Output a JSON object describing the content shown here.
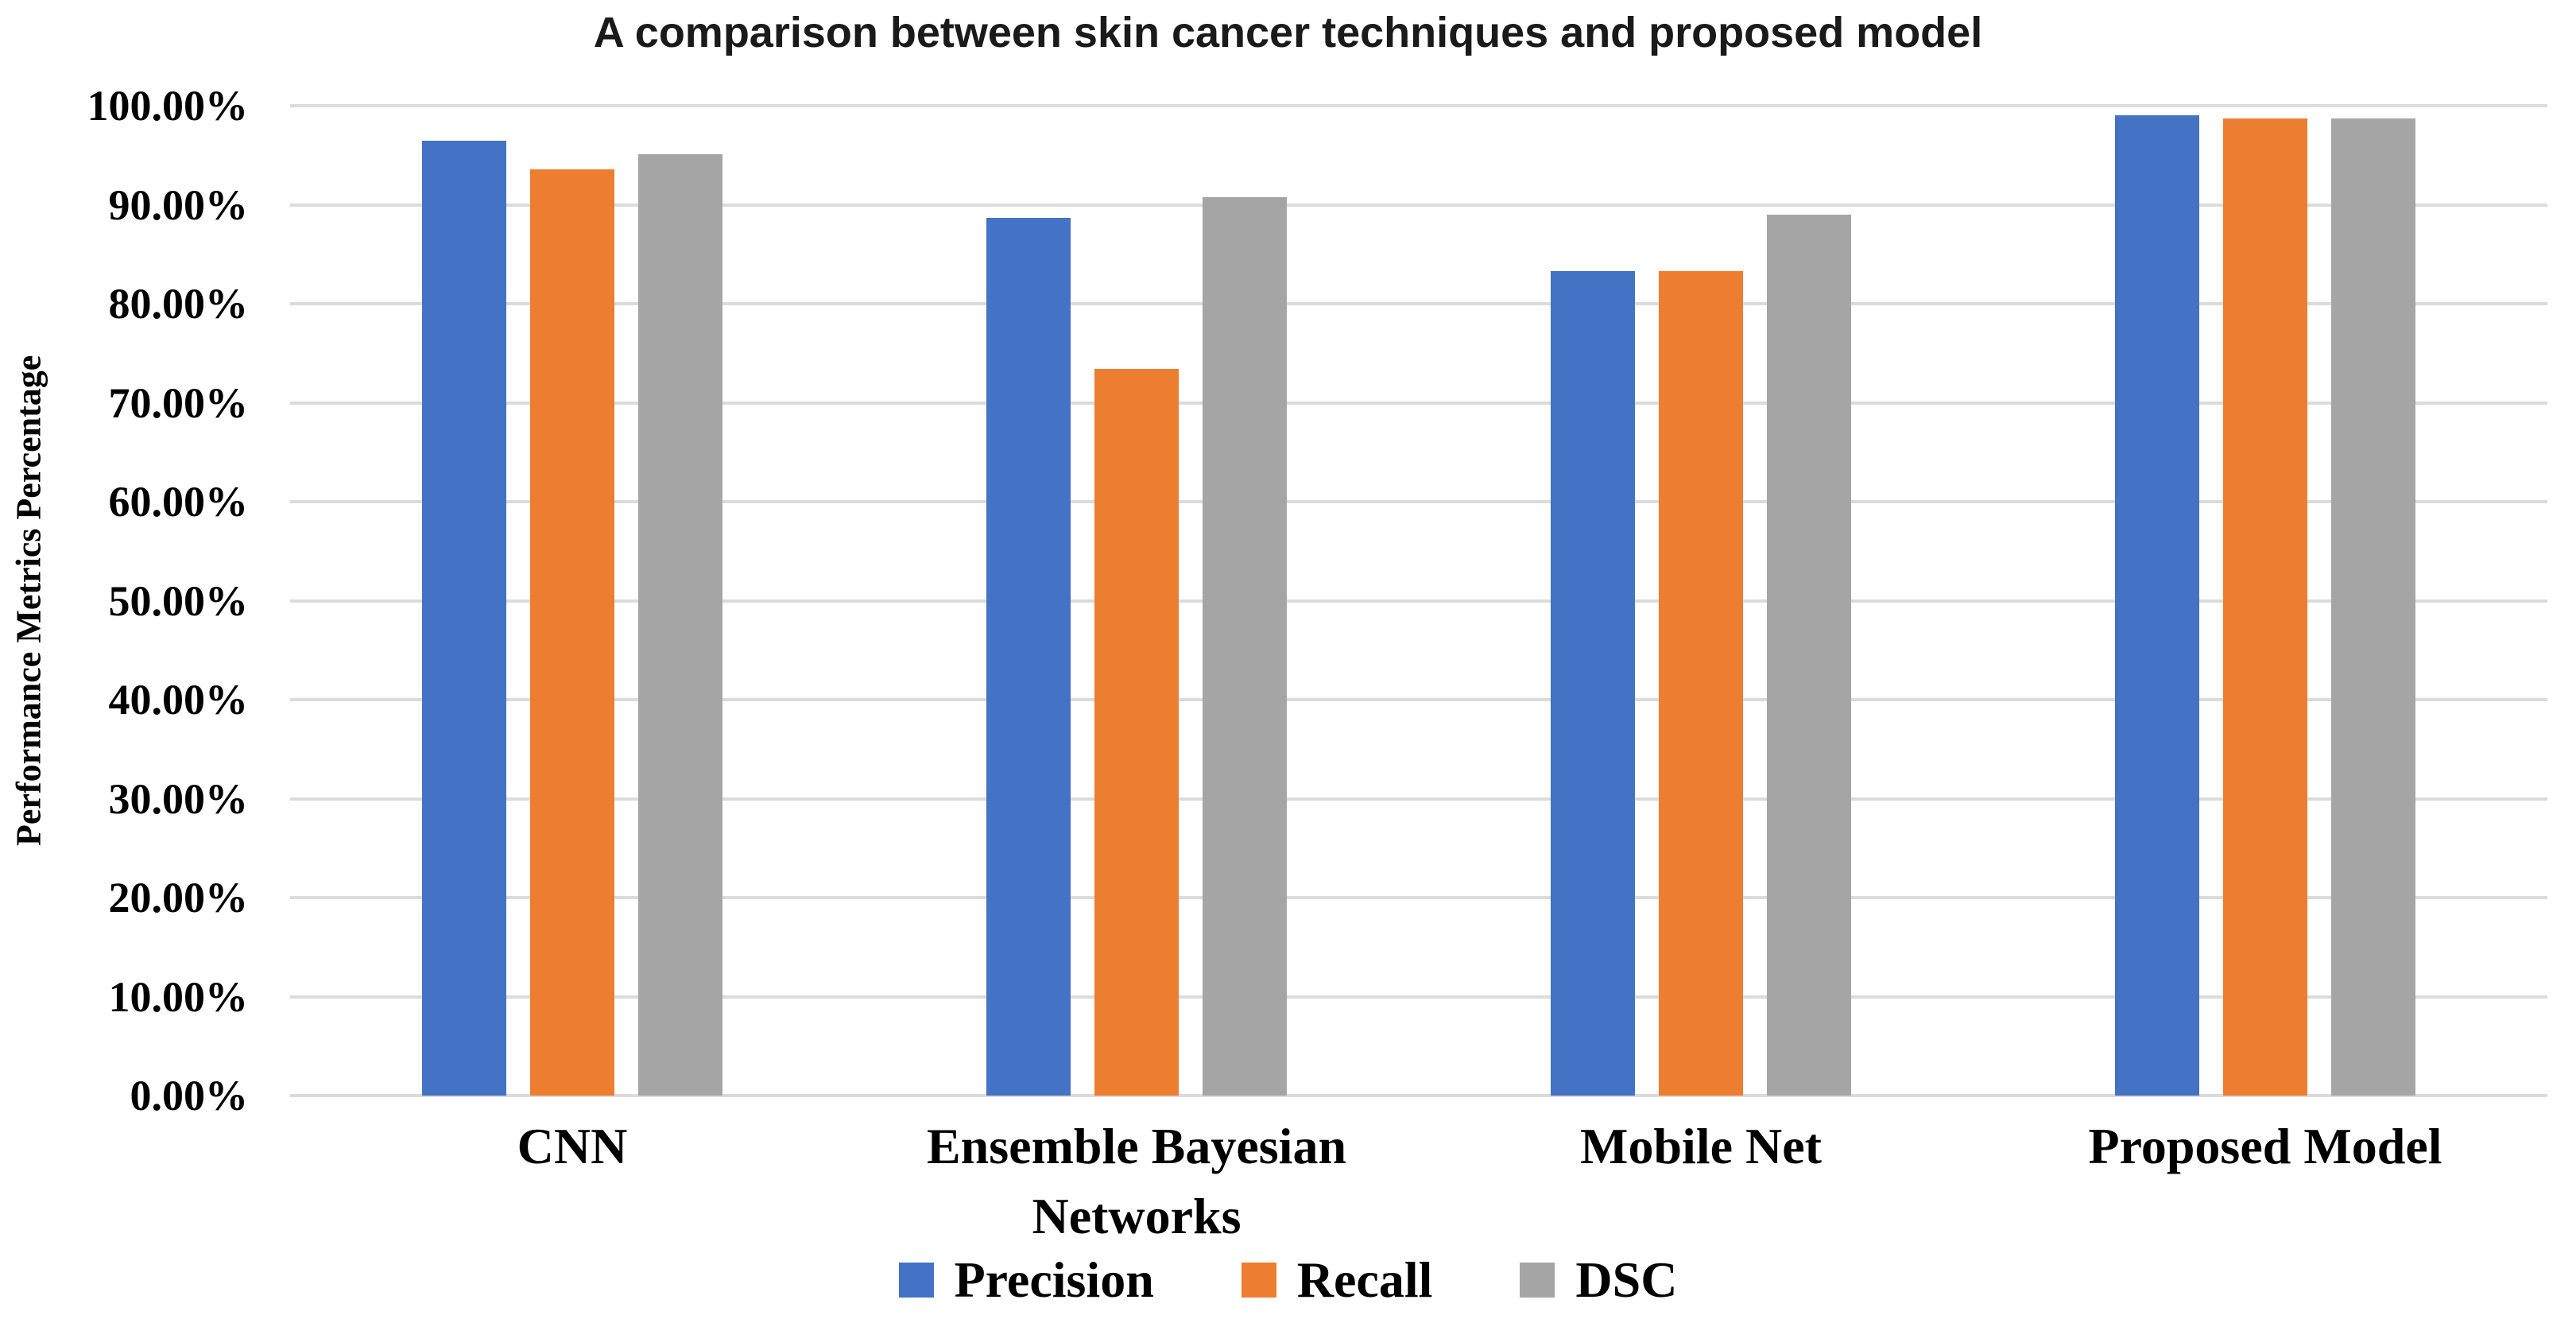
{
  "chart_data": {
    "type": "bar",
    "title": "A comparison between skin cancer techniques and proposed model",
    "xlabel": "",
    "ylabel": "Performance Metrics Percentage",
    "categories": [
      "CNN",
      "Ensemble Bayesian Networks",
      "Mobile Net",
      "Proposed Model"
    ],
    "series": [
      {
        "name": "Precision",
        "color": "#4472C4",
        "values": [
          96.5,
          88.7,
          83.3,
          99.0
        ]
      },
      {
        "name": "Recall",
        "color": "#ED7D31",
        "values": [
          93.6,
          73.4,
          83.3,
          98.7
        ]
      },
      {
        "name": "DSC",
        "color": "#A5A5A5",
        "values": [
          95.1,
          90.8,
          89.0,
          98.7
        ]
      }
    ],
    "ylim": [
      0,
      100
    ],
    "yticks": [
      {
        "label": "100.00%",
        "value": 100
      },
      {
        "label": "90.00%",
        "value": 90
      },
      {
        "label": "80.00%",
        "value": 80
      },
      {
        "label": "70.00%",
        "value": 70
      },
      {
        "label": "60.00%",
        "value": 60
      },
      {
        "label": "50.00%",
        "value": 50
      },
      {
        "label": "40.00%",
        "value": 40
      },
      {
        "label": "30.00%",
        "value": 30
      },
      {
        "label": "20.00%",
        "value": 20
      },
      {
        "label": "10.00%",
        "value": 10
      },
      {
        "label": "0.00%",
        "value": 0
      }
    ],
    "grid": "horizontal",
    "gridline_color": "#DBDBDB",
    "legend_position": "bottom",
    "text_color": "#000000",
    "background": "#FFFFFF"
  }
}
